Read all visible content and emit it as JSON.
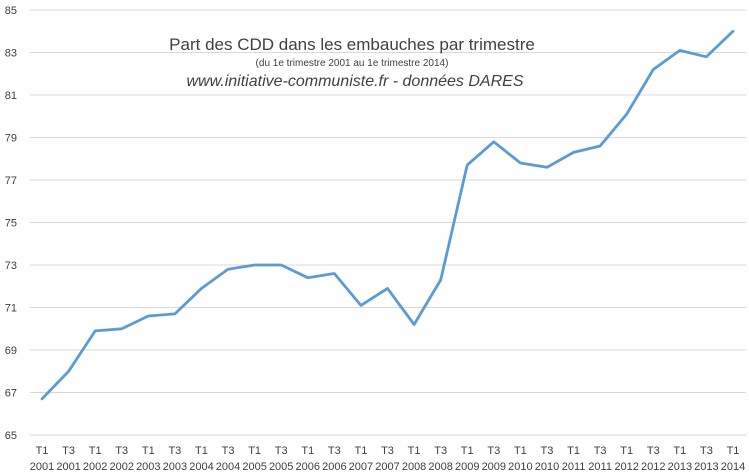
{
  "chart_data": {
    "type": "line",
    "title": "Part des CDD dans les embauches par trimestre",
    "subtitle": "(du 1e trimestre 2001 au 1e trimestre 2014)",
    "source": "www.initiative-communiste.fr - données DARES",
    "xlabel": "",
    "ylabel": "",
    "ylim": [
      65,
      85
    ],
    "yticks": [
      "65",
      "67",
      "69",
      "71",
      "73",
      "75",
      "77",
      "79",
      "81",
      "83",
      "85"
    ],
    "grid": true,
    "legend": "none",
    "color": "#5b9bd5",
    "categories": [
      {
        "quarter": "T1",
        "year": "2001"
      },
      {
        "quarter": "T3",
        "year": "2001"
      },
      {
        "quarter": "T1",
        "year": "2002"
      },
      {
        "quarter": "T3",
        "year": "2002"
      },
      {
        "quarter": "T1",
        "year": "2003"
      },
      {
        "quarter": "T3",
        "year": "2003"
      },
      {
        "quarter": "T1",
        "year": "2004"
      },
      {
        "quarter": "T3",
        "year": "2004"
      },
      {
        "quarter": "T1",
        "year": "2005"
      },
      {
        "quarter": "T3",
        "year": "2005"
      },
      {
        "quarter": "T1",
        "year": "2006"
      },
      {
        "quarter": "T3",
        "year": "2006"
      },
      {
        "quarter": "T1",
        "year": "2007"
      },
      {
        "quarter": "T3",
        "year": "2007"
      },
      {
        "quarter": "T1",
        "year": "2008"
      },
      {
        "quarter": "T3",
        "year": "2008"
      },
      {
        "quarter": "T1",
        "year": "2009"
      },
      {
        "quarter": "T3",
        "year": "2009"
      },
      {
        "quarter": "T1",
        "year": "2010"
      },
      {
        "quarter": "T3",
        "year": "2010"
      },
      {
        "quarter": "T1",
        "year": "2011"
      },
      {
        "quarter": "T3",
        "year": "2011"
      },
      {
        "quarter": "T1",
        "year": "2012"
      },
      {
        "quarter": "T3",
        "year": "2012"
      },
      {
        "quarter": "T1",
        "year": "2013"
      },
      {
        "quarter": "T3",
        "year": "2013"
      },
      {
        "quarter": "T1",
        "year": "2014"
      }
    ],
    "values": [
      66.7,
      68.0,
      69.9,
      70.0,
      70.6,
      70.7,
      71.9,
      72.8,
      73.0,
      73.0,
      72.4,
      72.6,
      71.1,
      71.9,
      70.2,
      72.3,
      77.7,
      78.8,
      77.8,
      77.6,
      78.3,
      78.6,
      80.1,
      82.2,
      83.1,
      82.8,
      84.0
    ]
  }
}
